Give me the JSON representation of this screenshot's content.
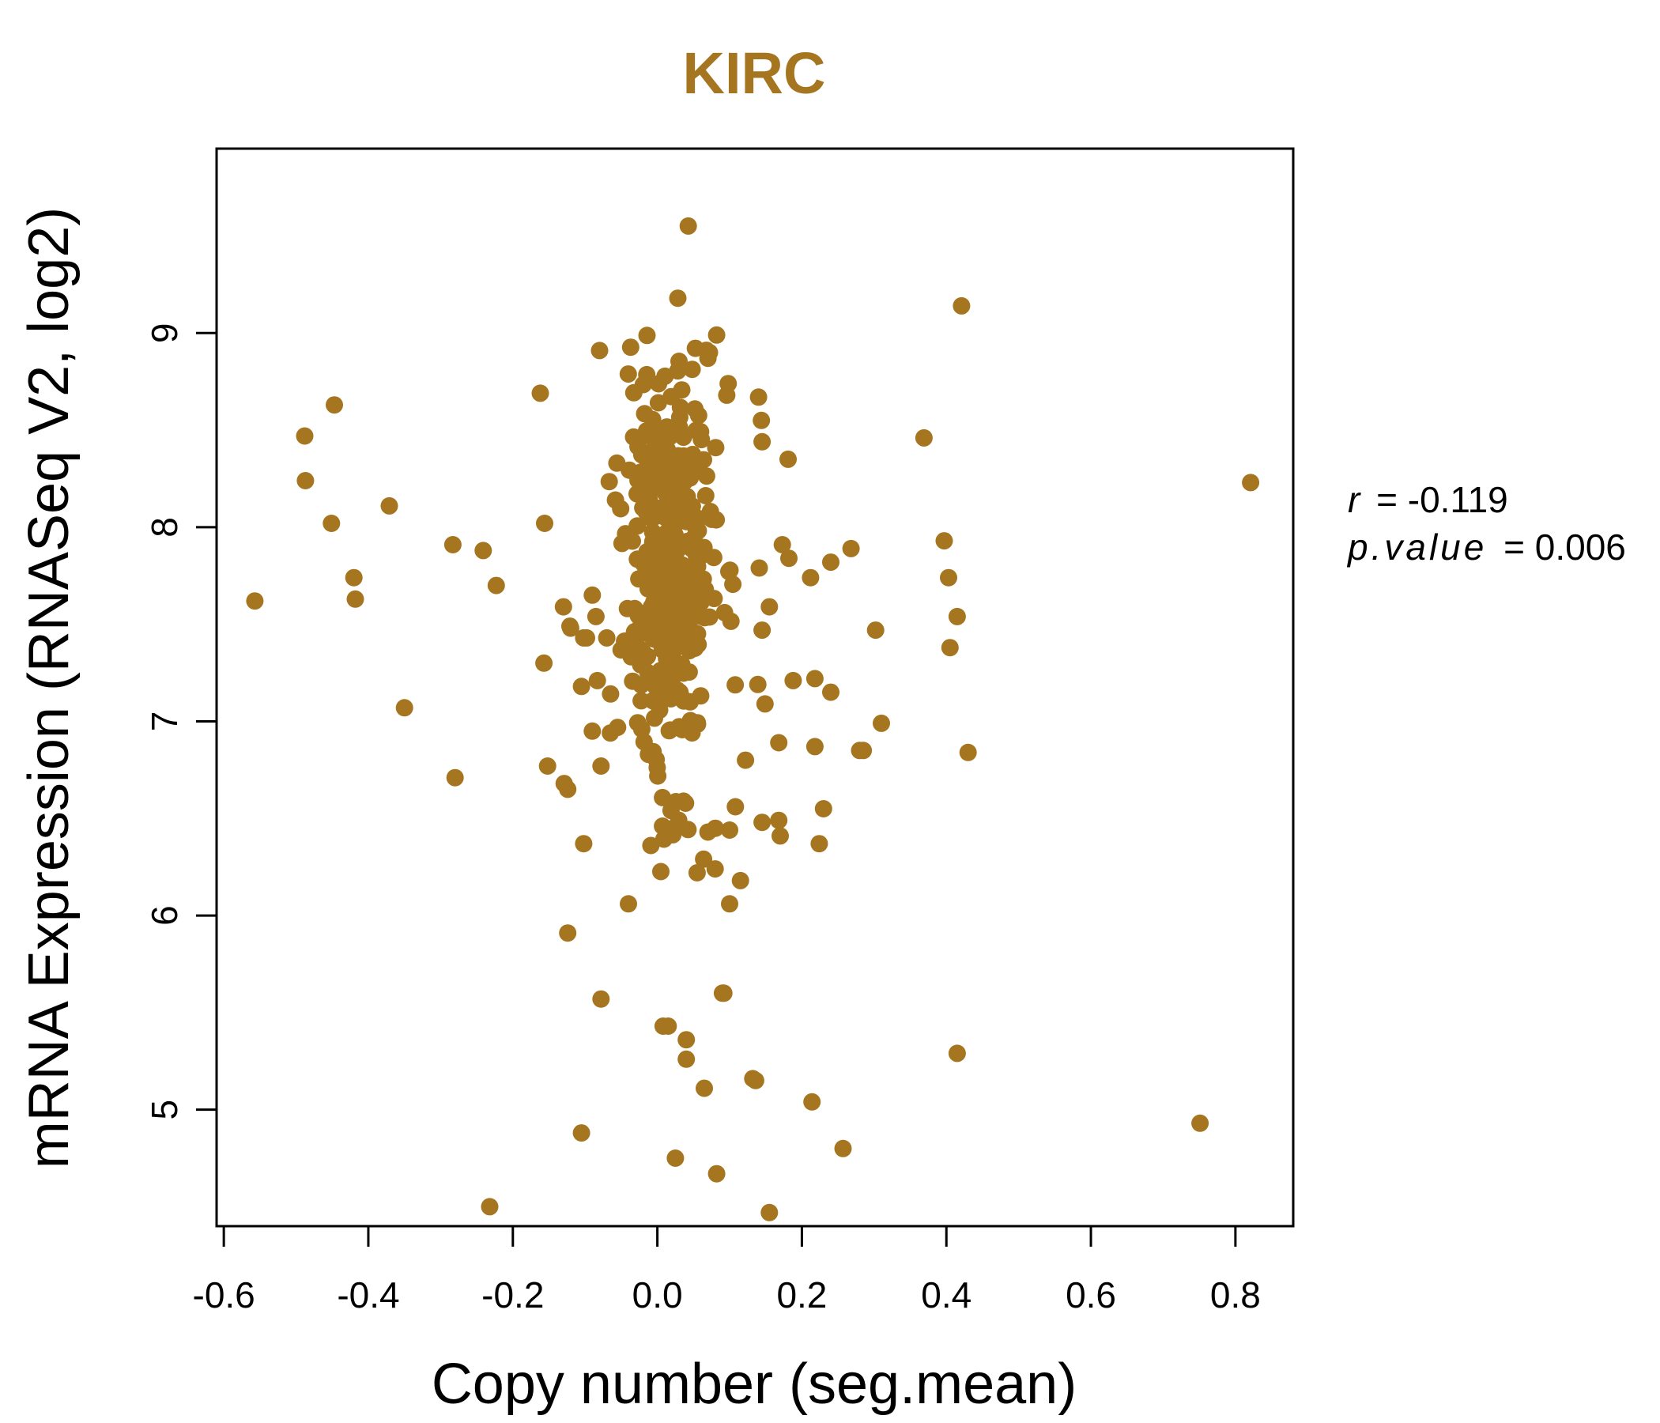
{
  "chart_data": {
    "type": "scatter",
    "title": "KIRC",
    "xlabel": "Copy number (seg.mean)",
    "ylabel": "mRNA Expression (RNASeq V2, log2)",
    "xlim": [
      -0.61,
      0.88
    ],
    "ylim": [
      4.4,
      9.95
    ],
    "xticks": [
      -0.6,
      -0.4,
      -0.2,
      0.0,
      0.2,
      0.4,
      0.6,
      0.8
    ],
    "xtick_labels": [
      "-0.6",
      "-0.4",
      "-0.2",
      "0.0",
      "0.2",
      "0.4",
      "0.6",
      "0.8"
    ],
    "yticks": [
      5,
      6,
      7,
      8,
      9
    ],
    "ytick_labels": [
      "5",
      "6",
      "7",
      "8",
      "9"
    ],
    "grid": false,
    "point_color": "#A67520",
    "stats": {
      "r_label": "r",
      "r_value": "= -0.119",
      "p_label": "p.value",
      "p_value": "= 0.006"
    },
    "outliers": [
      {
        "x": -0.557,
        "y": 7.62
      },
      {
        "x": -0.488,
        "y": 8.47
      },
      {
        "x": -0.487,
        "y": 8.24
      },
      {
        "x": -0.447,
        "y": 8.63
      },
      {
        "x": -0.451,
        "y": 8.02
      },
      {
        "x": -0.42,
        "y": 7.74
      },
      {
        "x": -0.418,
        "y": 7.63
      },
      {
        "x": -0.371,
        "y": 8.11
      },
      {
        "x": -0.35,
        "y": 7.07
      },
      {
        "x": -0.283,
        "y": 7.91
      },
      {
        "x": -0.28,
        "y": 6.71
      },
      {
        "x": -0.241,
        "y": 7.88
      },
      {
        "x": -0.223,
        "y": 7.7
      },
      {
        "x": -0.232,
        "y": 4.5
      },
      {
        "x": -0.162,
        "y": 8.69
      },
      {
        "x": -0.156,
        "y": 8.02
      },
      {
        "x": -0.157,
        "y": 7.3
      },
      {
        "x": -0.152,
        "y": 6.77
      },
      {
        "x": -0.13,
        "y": 7.59
      },
      {
        "x": -0.129,
        "y": 6.68
      },
      {
        "x": -0.124,
        "y": 6.65
      },
      {
        "x": -0.124,
        "y": 5.91
      },
      {
        "x": -0.12,
        "y": 7.48
      },
      {
        "x": -0.105,
        "y": 7.18
      },
      {
        "x": -0.102,
        "y": 6.37
      },
      {
        "x": -0.105,
        "y": 4.88
      },
      {
        "x": -0.098,
        "y": 7.43
      },
      {
        "x": -0.09,
        "y": 7.65
      },
      {
        "x": -0.09,
        "y": 6.95
      },
      {
        "x": -0.085,
        "y": 7.54
      },
      {
        "x": -0.083,
        "y": 7.21
      },
      {
        "x": -0.08,
        "y": 8.91
      },
      {
        "x": -0.078,
        "y": 6.77
      },
      {
        "x": -0.078,
        "y": 5.57
      },
      {
        "x": -0.07,
        "y": 7.43
      },
      {
        "x": -0.065,
        "y": 6.94
      },
      {
        "x": -0.056,
        "y": 8.33
      },
      {
        "x": -0.058,
        "y": 8.14
      },
      {
        "x": -0.04,
        "y": 6.06
      },
      {
        "x": 0.008,
        "y": 5.43
      },
      {
        "x": 0.015,
        "y": 5.43
      },
      {
        "x": 0.04,
        "y": 5.36
      },
      {
        "x": 0.04,
        "y": 5.26
      },
      {
        "x": 0.065,
        "y": 5.11
      },
      {
        "x": 0.025,
        "y": 4.75
      },
      {
        "x": 0.082,
        "y": 4.67
      },
      {
        "x": 0.09,
        "y": 5.6
      },
      {
        "x": 0.092,
        "y": 5.6
      },
      {
        "x": 0.132,
        "y": 5.16
      },
      {
        "x": 0.136,
        "y": 5.15
      },
      {
        "x": 0.155,
        "y": 4.47
      },
      {
        "x": 0.214,
        "y": 5.04
      },
      {
        "x": 0.257,
        "y": 4.8
      },
      {
        "x": 0.415,
        "y": 5.29
      },
      {
        "x": 0.751,
        "y": 4.93
      },
      {
        "x": 0.821,
        "y": 8.23
      },
      {
        "x": 0.421,
        "y": 9.14
      },
      {
        "x": 0.369,
        "y": 8.46
      },
      {
        "x": 0.397,
        "y": 7.93
      },
      {
        "x": 0.403,
        "y": 7.74
      },
      {
        "x": 0.415,
        "y": 7.54
      },
      {
        "x": 0.405,
        "y": 7.38
      },
      {
        "x": 0.43,
        "y": 6.84
      },
      {
        "x": 0.31,
        "y": 6.99
      },
      {
        "x": 0.302,
        "y": 7.47
      },
      {
        "x": 0.28,
        "y": 6.85
      },
      {
        "x": 0.285,
        "y": 6.85
      },
      {
        "x": 0.268,
        "y": 7.89
      },
      {
        "x": 0.24,
        "y": 7.82
      },
      {
        "x": 0.24,
        "y": 7.15
      },
      {
        "x": 0.23,
        "y": 6.55
      },
      {
        "x": 0.224,
        "y": 6.37
      },
      {
        "x": 0.218,
        "y": 6.87
      },
      {
        "x": 0.218,
        "y": 7.22
      },
      {
        "x": 0.212,
        "y": 7.74
      },
      {
        "x": 0.188,
        "y": 7.21
      },
      {
        "x": 0.182,
        "y": 7.84
      },
      {
        "x": 0.181,
        "y": 8.35
      },
      {
        "x": 0.173,
        "y": 7.91
      },
      {
        "x": 0.168,
        "y": 6.89
      },
      {
        "x": 0.168,
        "y": 6.49
      },
      {
        "x": 0.17,
        "y": 6.41
      },
      {
        "x": 0.155,
        "y": 7.59
      },
      {
        "x": 0.149,
        "y": 7.09
      },
      {
        "x": 0.145,
        "y": 8.44
      },
      {
        "x": 0.144,
        "y": 8.55
      },
      {
        "x": 0.14,
        "y": 8.67
      },
      {
        "x": 0.141,
        "y": 7.79
      },
      {
        "x": 0.145,
        "y": 7.47
      },
      {
        "x": 0.139,
        "y": 7.19
      },
      {
        "x": 0.145,
        "y": 6.48
      },
      {
        "x": 0.122,
        "y": 6.8
      },
      {
        "x": 0.115,
        "y": 6.18
      },
      {
        "x": 0.108,
        "y": 6.56
      },
      {
        "x": 0.1,
        "y": 6.06
      },
      {
        "x": 0.1,
        "y": 6.44
      },
      {
        "x": 0.098,
        "y": 8.74
      },
      {
        "x": 0.096,
        "y": 8.68
      },
      {
        "x": 0.082,
        "y": 8.99
      },
      {
        "x": 0.07,
        "y": 8.87
      },
      {
        "x": 0.08,
        "y": 6.24
      },
      {
        "x": 0.07,
        "y": 6.43
      },
      {
        "x": 0.064,
        "y": 6.29
      },
      {
        "x": 0.055,
        "y": 6.22
      },
      {
        "x": -0.121,
        "y": 7.49
      },
      {
        "x": -0.102,
        "y": 7.43
      },
      {
        "x": 0.093,
        "y": 7.56
      }
    ],
    "cluster": {
      "x_center": 0.018,
      "x_spread": 0.032,
      "y_center": 7.78,
      "y_spread": 0.55,
      "y_min": 6.02,
      "y_max": 9.63,
      "count": 390
    }
  }
}
